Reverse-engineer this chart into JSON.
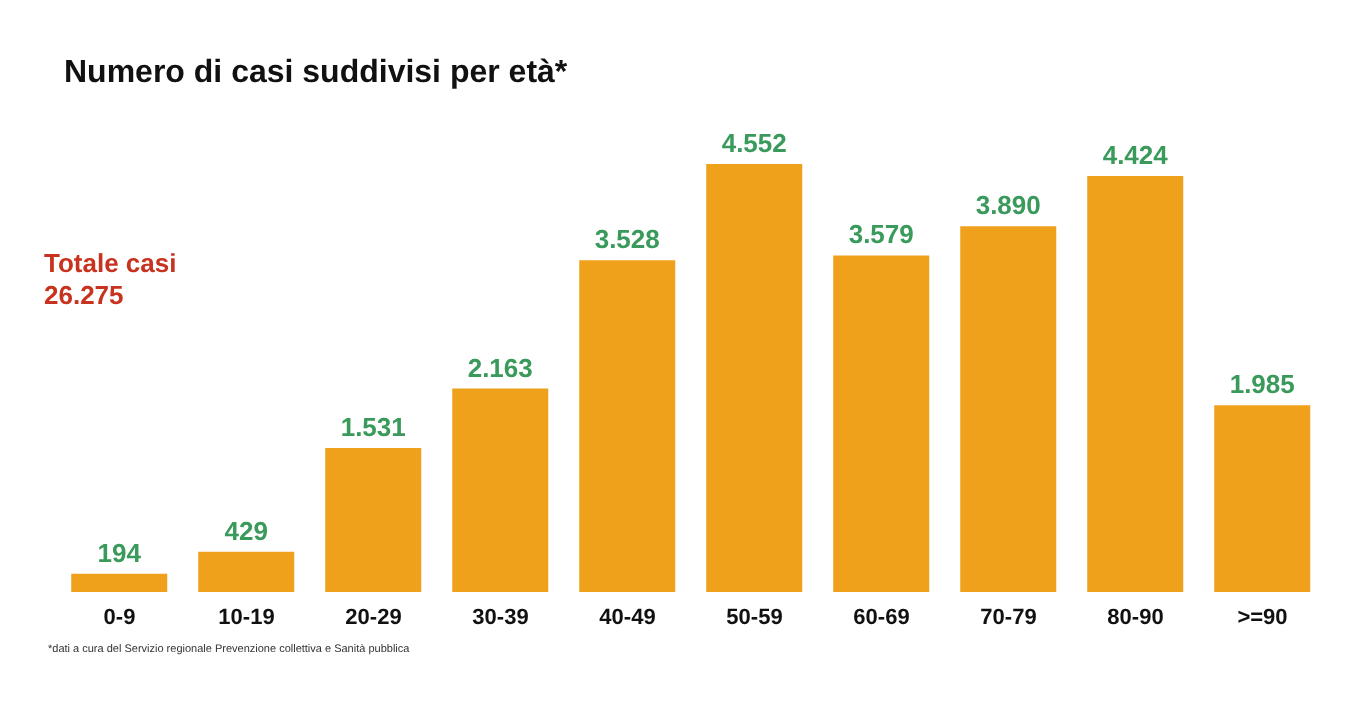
{
  "chart_data": {
    "type": "bar",
    "title": "Numero di casi suddivisi per età*",
    "categories": [
      "0-9",
      "10-19",
      "20-29",
      "30-39",
      "40-49",
      "50-59",
      "60-69",
      "70-79",
      "80-90",
      ">=90"
    ],
    "values": [
      194,
      429,
      1531,
      2163,
      3528,
      4552,
      3579,
      3890,
      4424,
      1985
    ],
    "value_labels": [
      "194",
      "429",
      "1.531",
      "2.163",
      "3.528",
      "4.552",
      "3.579",
      "3.890",
      "4.424",
      "1.985"
    ],
    "color": "#f0a11c",
    "annotations": [
      "Totale casi",
      "26.275",
      "*dati a cura del Servizio regionale Prevenzione collettiva e Sanità pubblica"
    ]
  }
}
